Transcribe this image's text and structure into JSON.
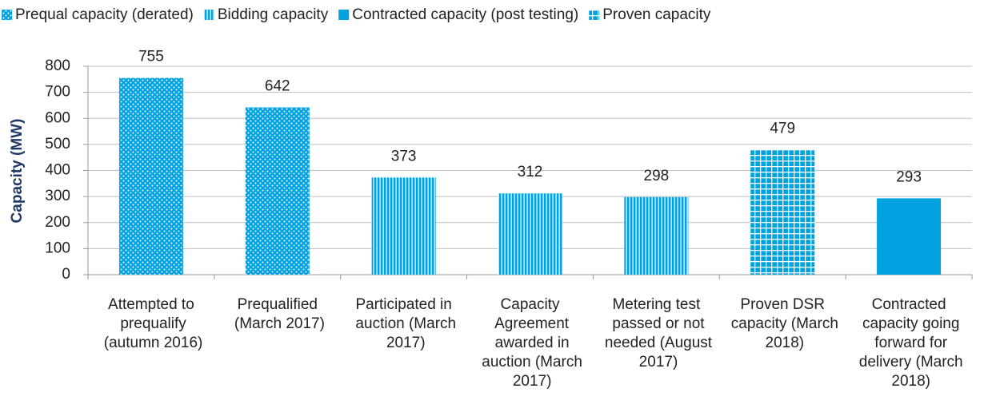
{
  "chart_data": {
    "type": "bar",
    "y_label": "Capacity (MW)",
    "categories": [
      "Attempted to prequalify (autumn 2016)",
      "Prequalified (March 2017)",
      "Participated in auction (March 2017)",
      "Capacity Agreement awarded in auction (March 2017)",
      "Metering test passed or not needed (August 2017)",
      "Proven DSR capacity (March 2018)",
      "Contracted capacity going forward for delivery (March 2018)"
    ],
    "series": [
      {
        "name": "Prequal capacity (derated)",
        "color": "#00a3e0",
        "pattern": "dots",
        "values": [
          755,
          642,
          null,
          null,
          null,
          null,
          null
        ]
      },
      {
        "name": "Bidding capacity",
        "color": "#00a3e0",
        "pattern": "vertical",
        "values": [
          null,
          null,
          373,
          312,
          298,
          null,
          null
        ]
      },
      {
        "name": "Contracted capacity (post testing)",
        "color": "#00a3e0",
        "pattern": "solid",
        "values": [
          null,
          null,
          null,
          null,
          null,
          null,
          293
        ]
      },
      {
        "name": "Proven capacity",
        "color": "#00a3e0",
        "pattern": "grid",
        "values": [
          null,
          null,
          null,
          null,
          null,
          479,
          null
        ]
      }
    ],
    "ylim": [
      0,
      800
    ],
    "yticks": [
      0,
      100,
      200,
      300,
      400,
      500,
      600,
      700,
      800
    ],
    "grid": true,
    "legend": "top"
  }
}
